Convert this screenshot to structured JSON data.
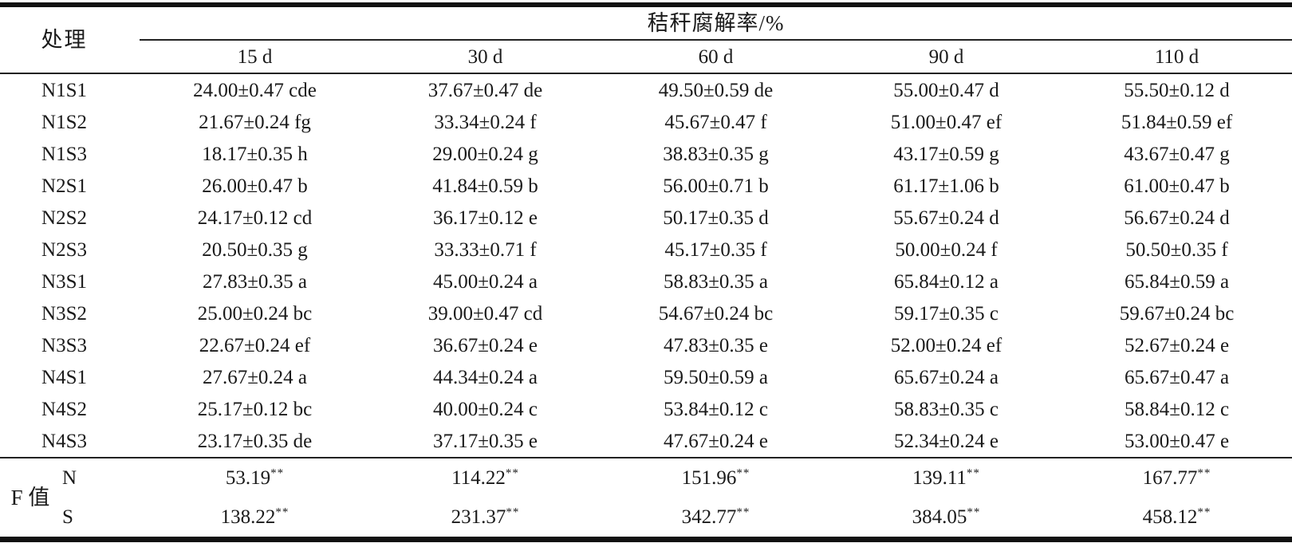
{
  "table": {
    "col1_header": "处理",
    "span_header": "秸秆腐解率/%",
    "time_headers": [
      "15 d",
      "30 d",
      "60 d",
      "90 d",
      "110 d"
    ],
    "rows": [
      {
        "treatment": "N1S1",
        "values": [
          "24.00±0.47 cde",
          "37.67±0.47 de",
          "49.50±0.59 de",
          "55.00±0.47 d",
          "55.50±0.12 d"
        ]
      },
      {
        "treatment": "N1S2",
        "values": [
          "21.67±0.24 fg",
          "33.34±0.24 f",
          "45.67±0.47 f",
          "51.00±0.47 ef",
          "51.84±0.59 ef"
        ]
      },
      {
        "treatment": "N1S3",
        "values": [
          "18.17±0.35 h",
          "29.00±0.24 g",
          "38.83±0.35 g",
          "43.17±0.59 g",
          "43.67±0.47 g"
        ]
      },
      {
        "treatment": "N2S1",
        "values": [
          "26.00±0.47 b",
          "41.84±0.59 b",
          "56.00±0.71 b",
          "61.17±1.06 b",
          "61.00±0.47 b"
        ]
      },
      {
        "treatment": "N2S2",
        "values": [
          "24.17±0.12 cd",
          "36.17±0.12 e",
          "50.17±0.35 d",
          "55.67±0.24 d",
          "56.67±0.24 d"
        ]
      },
      {
        "treatment": "N2S3",
        "values": [
          "20.50±0.35 g",
          "33.33±0.71 f",
          "45.17±0.35 f",
          "50.00±0.24 f",
          "50.50±0.35 f"
        ]
      },
      {
        "treatment": "N3S1",
        "values": [
          "27.83±0.35 a",
          "45.00±0.24 a",
          "58.83±0.35 a",
          "65.84±0.12 a",
          "65.84±0.59 a"
        ]
      },
      {
        "treatment": "N3S2",
        "values": [
          "25.00±0.24 bc",
          "39.00±0.47 cd",
          "54.67±0.24 bc",
          "59.17±0.35 c",
          "59.67±0.24 bc"
        ]
      },
      {
        "treatment": "N3S3",
        "values": [
          "22.67±0.24 ef",
          "36.67±0.24 e",
          "47.83±0.35 e",
          "52.00±0.24 ef",
          "52.67±0.24 e"
        ]
      },
      {
        "treatment": "N4S1",
        "values": [
          "27.67±0.24 a",
          "44.34±0.24 a",
          "59.50±0.59 a",
          "65.67±0.24 a",
          "65.67±0.47 a"
        ]
      },
      {
        "treatment": "N4S2",
        "values": [
          "25.17±0.12 bc",
          "40.00±0.24 c",
          "53.84±0.12 c",
          "58.83±0.35 c",
          "58.84±0.12 c"
        ]
      },
      {
        "treatment": "N4S3",
        "values": [
          "23.17±0.35 de",
          "37.17±0.35 e",
          "47.67±0.24 e",
          "52.34±0.24 e",
          "53.00±0.47 e"
        ]
      }
    ],
    "f_section": {
      "label": "F 值",
      "rows": [
        {
          "factor": "N",
          "values": [
            "53.19",
            "114.22",
            "151.96",
            "139.11",
            "167.77"
          ],
          "sig": "**"
        },
        {
          "factor": "S",
          "values": [
            "138.22",
            "231.37",
            "342.77",
            "384.05",
            "458.12"
          ],
          "sig": "**"
        }
      ]
    }
  }
}
